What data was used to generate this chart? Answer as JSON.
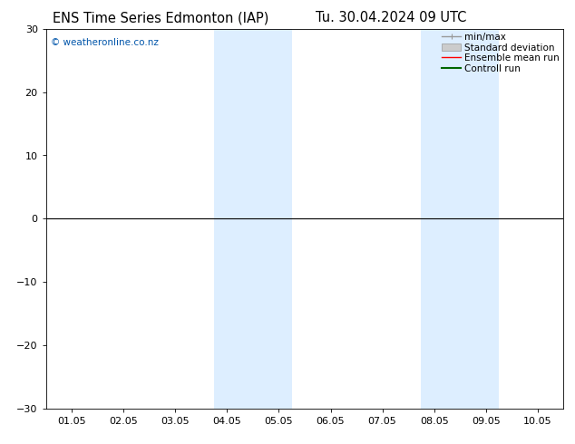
{
  "title_left": "ENS Time Series Edmonton (IAP)",
  "title_right": "Tu. 30.04.2024 09 UTC",
  "ylim": [
    -30,
    30
  ],
  "yticks": [
    -30,
    -20,
    -10,
    0,
    10,
    20,
    30
  ],
  "xtick_labels": [
    "01.05",
    "02.05",
    "03.05",
    "04.05",
    "05.05",
    "06.05",
    "07.05",
    "08.05",
    "09.05",
    "10.05"
  ],
  "shaded_bands": [
    {
      "xstart": 2.75,
      "xend": 4.25
    },
    {
      "xstart": 6.75,
      "xend": 8.25
    }
  ],
  "shade_color": "#ddeeff",
  "watermark": "© weatheronline.co.nz",
  "watermark_color": "#0055aa",
  "background_color": "#ffffff",
  "zero_line_color": "#000000",
  "legend_items": [
    {
      "label": "min/max",
      "color": "#999999",
      "lw": 1.0
    },
    {
      "label": "Standard deviation",
      "color": "#cccccc",
      "lw": 1.0
    },
    {
      "label": "Ensemble mean run",
      "color": "#ff0000",
      "lw": 1.0
    },
    {
      "label": "Controll run",
      "color": "#006600",
      "lw": 1.5
    }
  ],
  "title_fontsize": 10.5,
  "tick_fontsize": 8,
  "legend_fontsize": 7.5
}
